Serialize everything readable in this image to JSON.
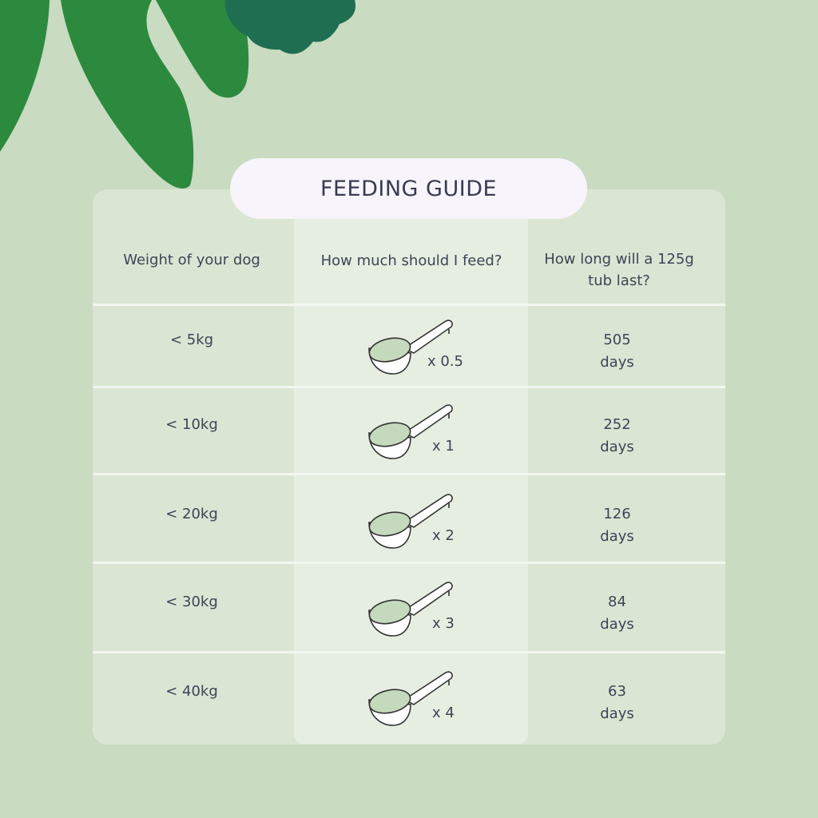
{
  "title": "FEEDING GUIDE",
  "headers": [
    "Weight of your dog",
    "How much should I feed?",
    "How long will a 125g tub last?"
  ],
  "rows": [
    {
      "weight": "< 5kg",
      "amount": "x 0.5",
      "days": "505",
      "unit": "days"
    },
    {
      "weight": "< 10kg",
      "amount": "x 1",
      "days": "252",
      "unit": "days"
    },
    {
      "weight": "< 20kg",
      "amount": "x 2",
      "days": "126",
      "unit": "days"
    },
    {
      "weight": "< 30kg",
      "amount": "x 3",
      "days": "84",
      "unit": "days"
    },
    {
      "weight": "< 40kg",
      "amount": "x 4",
      "days": "63",
      "unit": "days"
    }
  ],
  "colors": {
    "background": "#c9dbc0",
    "leaf": "#2c8a3e",
    "leaf_dark": "#1f6e52",
    "pill": "#f8f4fb"
  }
}
